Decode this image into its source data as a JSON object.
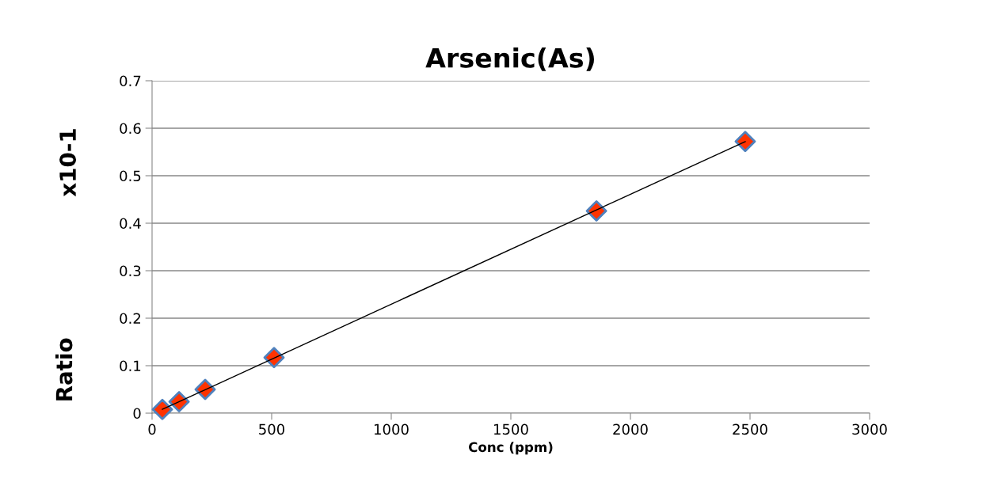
{
  "chart_data": {
    "type": "scatter",
    "title": "Arsenic(As)",
    "xlabel": "Conc (ppm)",
    "ylabel": "Ratio",
    "annotations": [
      "x10-1"
    ],
    "series": [
      {
        "marker": "diamond",
        "color": "#ff3300",
        "x": [
          43,
          113,
          222,
          510,
          1858,
          2480
        ],
        "values": [
          0.008,
          0.024,
          0.05,
          0.117,
          0.426,
          0.572
        ]
      },
      {
        "type": "line",
        "marker": "none",
        "color": "#000000",
        "x": [
          43,
          2480
        ],
        "values": [
          0.008,
          0.572
        ]
      }
    ],
    "xlim": [
      0,
      3000
    ],
    "xticks": [
      0,
      500,
      1000,
      1500,
      2000,
      2500,
      3000
    ],
    "ylim": [
      0,
      0.7
    ],
    "yticks": [
      0,
      0.1,
      0.2,
      0.3,
      0.4,
      0.5,
      0.6,
      0.7
    ],
    "grid": "y",
    "legend": false
  }
}
